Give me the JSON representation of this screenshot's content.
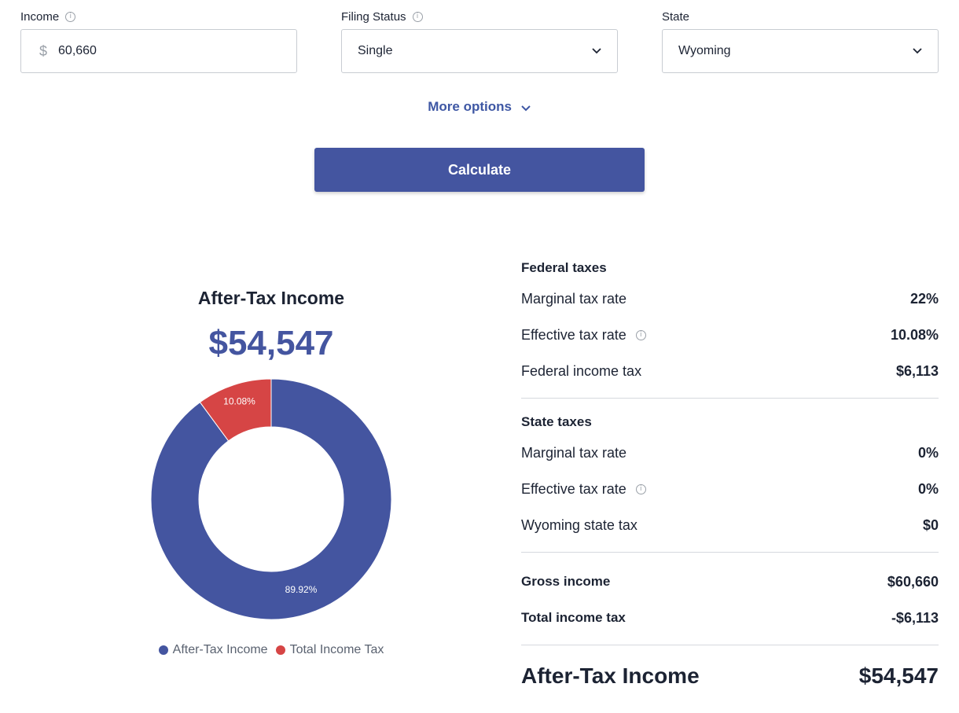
{
  "form": {
    "income": {
      "label": "Income",
      "currency_symbol": "$",
      "value": "60,660"
    },
    "filing_status": {
      "label": "Filing Status",
      "value": "Single"
    },
    "state": {
      "label": "State",
      "value": "Wyoming"
    },
    "more_options_label": "More options",
    "calculate_label": "Calculate"
  },
  "summary": {
    "title": "After-Tax Income",
    "amount": "$54,547"
  },
  "chart_data": {
    "type": "pie",
    "donut": true,
    "categories": [
      "After-Tax Income",
      "Total Income Tax"
    ],
    "values": [
      89.92,
      10.08
    ],
    "labels": [
      "89.92%",
      "10.08%"
    ],
    "colors": [
      "#4455a0",
      "#d64545"
    ],
    "legend": "bottom"
  },
  "federal": {
    "heading": "Federal taxes",
    "rows": [
      {
        "label": "Marginal tax rate",
        "value": "22%"
      },
      {
        "label": "Effective tax rate",
        "value": "10.08%"
      },
      {
        "label": "Federal income tax",
        "value": "$6,113"
      }
    ]
  },
  "state_taxes": {
    "heading": "State taxes",
    "rows": [
      {
        "label": "Marginal tax rate",
        "value": "0%"
      },
      {
        "label": "Effective tax rate",
        "value": "0%"
      },
      {
        "label": "Wyoming state tax",
        "value": "$0"
      }
    ]
  },
  "totals": {
    "rows": [
      {
        "label": "Gross income",
        "value": "$60,660"
      },
      {
        "label": "Total income tax",
        "value": "-$6,113"
      }
    ],
    "final": {
      "label": "After-Tax Income",
      "value": "$54,547"
    }
  },
  "icons": {
    "info": "info-icon",
    "chevron": "chevron-down-icon"
  },
  "colors": {
    "accent": "#4455a0",
    "link": "#3e57a4",
    "tax": "#d64545"
  }
}
